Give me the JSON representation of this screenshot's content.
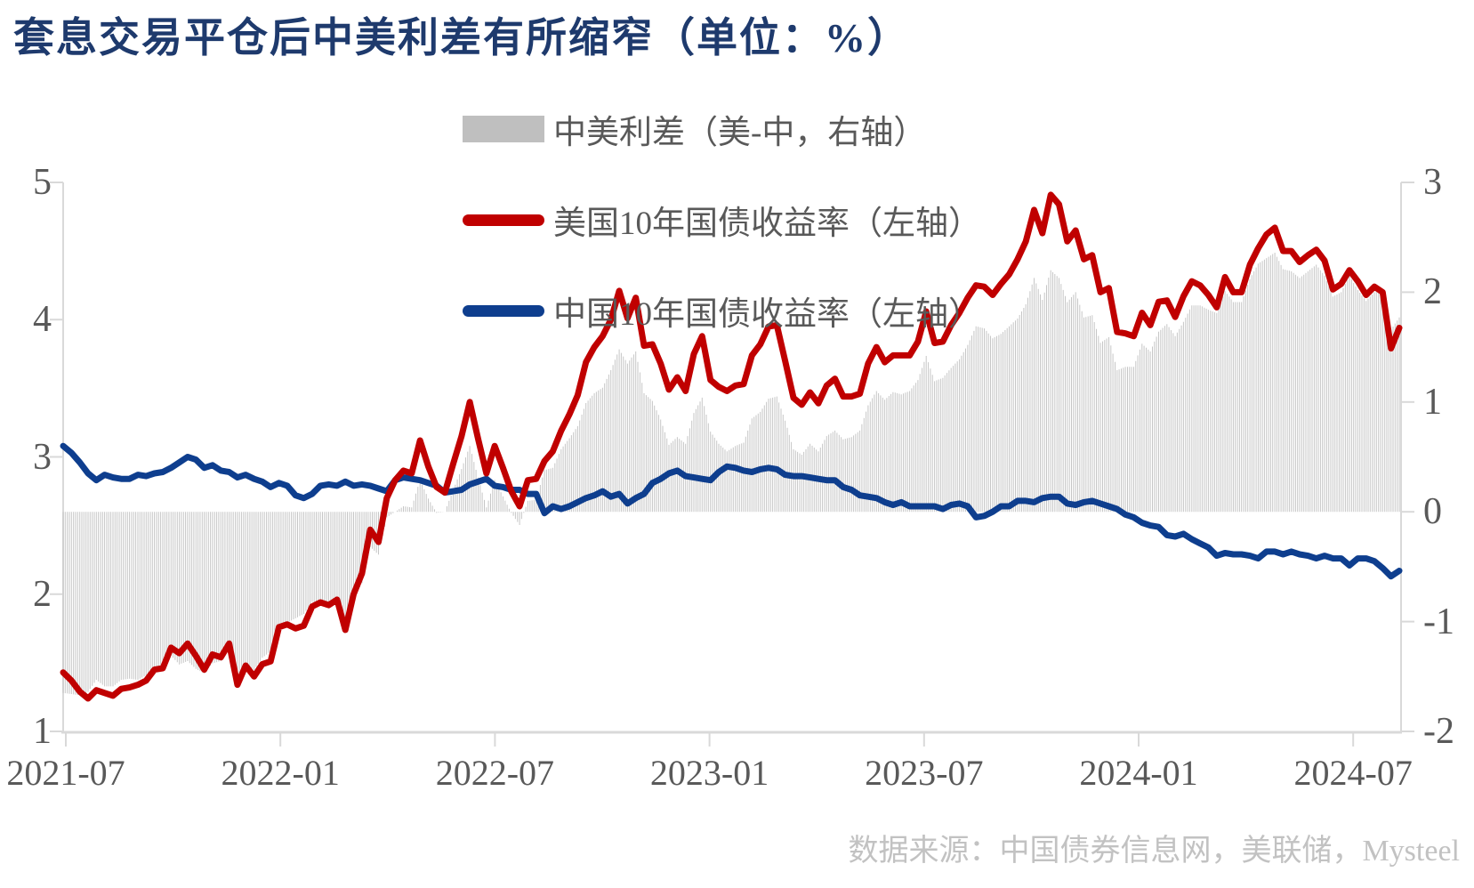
{
  "title": "套息交易平仓后中美利差有所缩窄（单位：%）",
  "source_note": "数据来源：中国债券信息网，美联储，Mysteel",
  "colors": {
    "title": "#1e3a6d",
    "us_line": "#c00000",
    "cn_line": "#0e3e8e",
    "spread_bar": "#c6c6c6",
    "legend_bar_swatch": "#bfbfbf",
    "axis_line": "#d9d9d9",
    "axis_text": "#595959",
    "source_text": "#c2c2c2"
  },
  "legend": [
    {
      "label": "中美利差（美-中，右轴）",
      "swatch": "bar",
      "color": "#bfbfbf"
    },
    {
      "label": "美国10年国债收益率（左轴）",
      "swatch": "line",
      "color": "#c00000"
    },
    {
      "label": "中国10年国债收益率（左轴）",
      "swatch": "line",
      "color": "#0e3e8e"
    }
  ],
  "chart_data": {
    "type": "combo",
    "title": "套息交易平仓后中美利差有所缩窄（单位：%）",
    "grid": false,
    "legend_position": "top-center",
    "x_axis": {
      "start": "2021-07",
      "end": "2024-08",
      "sampling": "weekly",
      "tick_labels": [
        "2021-07",
        "2022-01",
        "2022-07",
        "2023-01",
        "2023-07",
        "2024-01",
        "2024-07"
      ]
    },
    "left_axis": {
      "min": 1,
      "max": 5,
      "ticks": [
        5,
        4,
        3,
        2,
        1
      ]
    },
    "right_axis": {
      "min": -2,
      "max": 3,
      "ticks": [
        3,
        2,
        1,
        0,
        -1,
        -2
      ]
    },
    "series": [
      {
        "name": "中美利差（美-中，右轴）",
        "type": "bar",
        "axis": "right",
        "color": "#c6c6c6",
        "derived": "us_10y minus cn_10y (values below are per-week spread)"
      },
      {
        "name": "美国10年国债收益率（左轴）",
        "type": "line",
        "axis": "left",
        "color": "#c00000",
        "values": [
          1.43,
          1.37,
          1.29,
          1.24,
          1.3,
          1.28,
          1.26,
          1.31,
          1.32,
          1.34,
          1.37,
          1.45,
          1.46,
          1.61,
          1.57,
          1.64,
          1.55,
          1.45,
          1.56,
          1.54,
          1.64,
          1.34,
          1.48,
          1.4,
          1.49,
          1.51,
          1.76,
          1.78,
          1.75,
          1.77,
          1.91,
          1.94,
          1.92,
          1.96,
          1.74,
          2.0,
          2.15,
          2.47,
          2.38,
          2.7,
          2.83,
          2.9,
          2.88,
          3.12,
          2.93,
          2.78,
          2.74,
          2.95,
          3.15,
          3.4,
          3.13,
          2.88,
          3.08,
          2.92,
          2.75,
          2.64,
          2.83,
          2.84,
          2.97,
          3.04,
          3.19,
          3.31,
          3.45,
          3.69,
          3.8,
          3.88,
          4.0,
          4.21,
          4.01,
          4.16,
          3.81,
          3.82,
          3.68,
          3.49,
          3.58,
          3.48,
          3.75,
          3.88,
          3.56,
          3.51,
          3.48,
          3.52,
          3.53,
          3.74,
          3.82,
          3.95,
          3.96,
          3.7,
          3.43,
          3.38,
          3.47,
          3.39,
          3.52,
          3.57,
          3.44,
          3.44,
          3.46,
          3.68,
          3.8,
          3.69,
          3.74,
          3.74,
          3.74,
          3.84,
          4.06,
          3.83,
          3.84,
          3.96,
          4.05,
          4.16,
          4.25,
          4.24,
          4.18,
          4.26,
          4.33,
          4.44,
          4.57,
          4.8,
          4.63,
          4.91,
          4.84,
          4.57,
          4.65,
          4.44,
          4.47,
          4.2,
          4.23,
          3.91,
          3.9,
          3.88,
          4.05,
          3.96,
          4.13,
          4.14,
          4.02,
          4.17,
          4.28,
          4.25,
          4.18,
          4.09,
          4.31,
          4.2,
          4.2,
          4.4,
          4.52,
          4.62,
          4.67,
          4.5,
          4.5,
          4.42,
          4.47,
          4.51,
          4.43,
          4.22,
          4.26,
          4.36,
          4.28,
          4.18,
          4.24,
          4.2,
          3.79,
          3.94
        ]
      },
      {
        "name": "中国10年国债收益率（左轴）",
        "type": "line",
        "axis": "left",
        "color": "#0e3e8e",
        "values": [
          3.08,
          3.03,
          2.96,
          2.88,
          2.83,
          2.87,
          2.85,
          2.84,
          2.84,
          2.87,
          2.86,
          2.88,
          2.89,
          2.92,
          2.96,
          3.0,
          2.98,
          2.92,
          2.94,
          2.9,
          2.89,
          2.85,
          2.87,
          2.84,
          2.82,
          2.78,
          2.81,
          2.79,
          2.72,
          2.7,
          2.73,
          2.79,
          2.8,
          2.79,
          2.82,
          2.79,
          2.8,
          2.79,
          2.77,
          2.75,
          2.83,
          2.85,
          2.84,
          2.83,
          2.81,
          2.79,
          2.74,
          2.75,
          2.76,
          2.8,
          2.82,
          2.84,
          2.79,
          2.78,
          2.76,
          2.76,
          2.73,
          2.73,
          2.59,
          2.64,
          2.62,
          2.64,
          2.67,
          2.7,
          2.72,
          2.75,
          2.71,
          2.73,
          2.66,
          2.7,
          2.73,
          2.81,
          2.84,
          2.88,
          2.9,
          2.86,
          2.85,
          2.84,
          2.83,
          2.89,
          2.93,
          2.92,
          2.9,
          2.89,
          2.91,
          2.92,
          2.91,
          2.87,
          2.86,
          2.86,
          2.85,
          2.84,
          2.83,
          2.83,
          2.78,
          2.76,
          2.72,
          2.71,
          2.7,
          2.67,
          2.65,
          2.67,
          2.64,
          2.64,
          2.64,
          2.64,
          2.62,
          2.65,
          2.66,
          2.64,
          2.56,
          2.57,
          2.6,
          2.64,
          2.64,
          2.68,
          2.68,
          2.67,
          2.7,
          2.71,
          2.71,
          2.66,
          2.65,
          2.67,
          2.68,
          2.66,
          2.64,
          2.62,
          2.58,
          2.56,
          2.52,
          2.5,
          2.49,
          2.43,
          2.42,
          2.44,
          2.4,
          2.37,
          2.34,
          2.28,
          2.3,
          2.29,
          2.29,
          2.28,
          2.26,
          2.31,
          2.31,
          2.29,
          2.31,
          2.29,
          2.28,
          2.26,
          2.28,
          2.26,
          2.26,
          2.21,
          2.26,
          2.26,
          2.24,
          2.19,
          2.13,
          2.17
        ]
      }
    ]
  }
}
